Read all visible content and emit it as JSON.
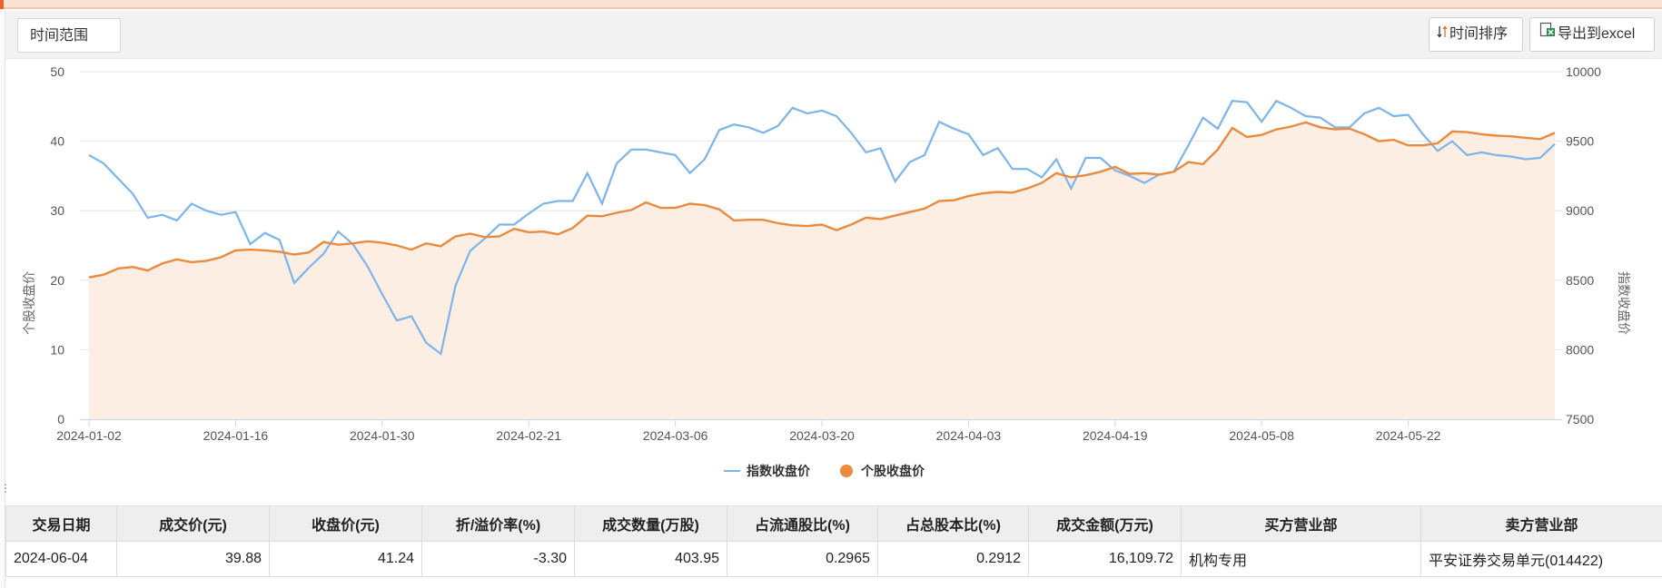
{
  "toolbar": {
    "range_label": "时间范围",
    "sort_label": "时间排序",
    "export_label": "导出到excel"
  },
  "colors": {
    "index_line": "#7cb5ec",
    "stock_line": "#ea8a3d",
    "stock_area": "#fdeee3",
    "grid": "#e6e6e6"
  },
  "chart_data": {
    "type": "line",
    "left_axis": {
      "label": "个股收盘价",
      "range": [
        0,
        50
      ],
      "ticks": [
        "0",
        "10",
        "20",
        "30",
        "40",
        "50"
      ]
    },
    "right_axis": {
      "label": "指数收盘价",
      "range": [
        7500,
        10000
      ],
      "ticks": [
        "7500",
        "8000",
        "8500",
        "9000",
        "9500",
        "10000"
      ]
    },
    "x_ticks": [
      {
        "index": 0,
        "label": "2024-01-02"
      },
      {
        "index": 10,
        "label": "2024-01-16"
      },
      {
        "index": 20,
        "label": "2024-01-30"
      },
      {
        "index": 30,
        "label": "2024-02-21"
      },
      {
        "index": 40,
        "label": "2024-03-06"
      },
      {
        "index": 50,
        "label": "2024-03-20"
      },
      {
        "index": 60,
        "label": "2024-04-03"
      },
      {
        "index": 70,
        "label": "2024-04-19"
      },
      {
        "index": 80,
        "label": "2024-05-08"
      },
      {
        "index": 90,
        "label": "2024-05-22"
      }
    ],
    "legend": {
      "position": "bottom-center"
    },
    "grid": true,
    "series": [
      {
        "name": "指数收盘价",
        "axis": "right",
        "style": "line",
        "values": [
          9400,
          9340,
          9230,
          9120,
          8950,
          8970,
          8930,
          9050,
          9000,
          8970,
          8990,
          8760,
          8840,
          8790,
          8480,
          8590,
          8690,
          8850,
          8760,
          8600,
          8400,
          8210,
          8240,
          8050,
          7970,
          8460,
          8710,
          8800,
          8900,
          8900,
          8980,
          9050,
          9070,
          9070,
          9270,
          9050,
          9340,
          9440,
          9440,
          9420,
          9400,
          9270,
          9370,
          9580,
          9620,
          9600,
          9560,
          9610,
          9740,
          9700,
          9720,
          9680,
          9560,
          9420,
          9450,
          9210,
          9350,
          9400,
          9640,
          9590,
          9550,
          9400,
          9450,
          9300,
          9300,
          9240,
          9370,
          9160,
          9380,
          9380,
          9290,
          9250,
          9200,
          9260,
          9280,
          9470,
          9670,
          9590,
          9790,
          9780,
          9640,
          9790,
          9740,
          9680,
          9670,
          9600,
          9600,
          9700,
          9740,
          9680,
          9690,
          9550,
          9430,
          9500,
          9400,
          9420,
          9400,
          9390,
          9370,
          9380,
          9480
        ]
      },
      {
        "name": "个股收盘价",
        "axis": "left",
        "style": "area",
        "values": [
          20.4,
          20.8,
          21.7,
          21.9,
          21.4,
          22.4,
          23.0,
          22.6,
          22.8,
          23.3,
          24.3,
          24.4,
          24.3,
          24.1,
          23.7,
          24.0,
          25.5,
          25.1,
          25.3,
          25.6,
          25.4,
          25.0,
          24.4,
          25.3,
          24.9,
          26.3,
          26.7,
          26.2,
          26.3,
          27.4,
          26.9,
          27.0,
          26.6,
          27.5,
          29.3,
          29.2,
          29.7,
          30.1,
          31.2,
          30.4,
          30.4,
          31.0,
          30.8,
          30.2,
          28.6,
          28.7,
          28.7,
          28.2,
          27.9,
          27.8,
          28.0,
          27.2,
          28.0,
          29.0,
          28.8,
          29.3,
          29.8,
          30.3,
          31.4,
          31.5,
          32.1,
          32.5,
          32.7,
          32.6,
          33.2,
          34.0,
          35.4,
          34.8,
          35.1,
          35.6,
          36.3,
          35.3,
          35.4,
          35.2,
          35.6,
          37.0,
          36.7,
          38.8,
          41.9,
          40.6,
          40.9,
          41.7,
          42.1,
          42.7,
          42.0,
          41.7,
          41.8,
          41.0,
          40.0,
          40.2,
          39.4,
          39.4,
          39.7,
          41.4,
          41.3,
          41.0,
          40.8,
          40.7,
          40.5,
          40.3,
          41.2
        ]
      }
    ]
  },
  "table": {
    "headers": [
      "交易日期",
      "成交价(元)",
      "收盘价(元)",
      "折/溢价率(%)",
      "成交数量(万股)",
      "占流通股比(%)",
      "占总股本比(%)",
      "成交金额(万元)",
      "买方营业部",
      "卖方营业部"
    ],
    "rows": [
      [
        "2024-06-04",
        "39.88",
        "41.24",
        "-3.30",
        "403.95",
        "0.2965",
        "0.2912",
        "16,109.72",
        "机构专用",
        "平安证券交易单元(014422)"
      ]
    ]
  }
}
